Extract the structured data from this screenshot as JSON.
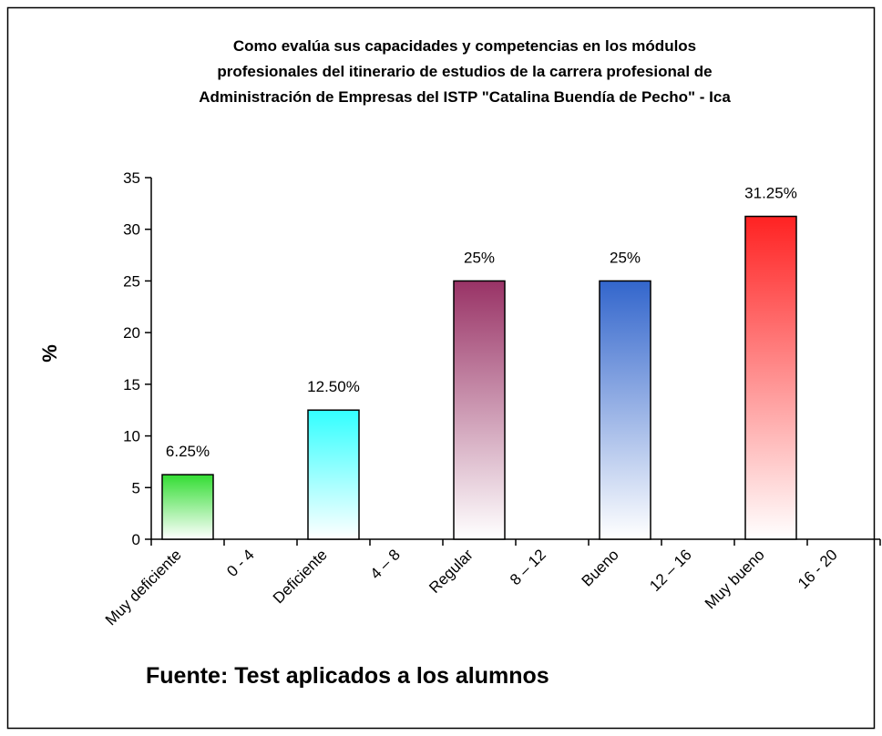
{
  "chart_data": {
    "type": "bar",
    "title": [
      "Como evalúa sus capacidades y competencias en los módulos",
      "profesionales del itinerario de estudios de la carrera profesional de",
      "Administración de Empresas del ISTP \"Catalina Buendía de Pecho\" - Ica"
    ],
    "ylabel": "%",
    "source": "Fuente: Test aplicados a los alumnos",
    "categories": [
      "Muy deficiente",
      "0 - 4",
      "Deficiente",
      "4 – 8",
      "Regular",
      "8 – 12",
      "Bueno",
      "12 – 16",
      "Muy bueno",
      "16 - 20"
    ],
    "values": [
      6.25,
      null,
      12.5,
      null,
      25,
      null,
      25,
      null,
      31.25,
      null
    ],
    "value_labels": [
      "6.25%",
      null,
      "12.50%",
      null,
      "25%",
      null,
      "25%",
      null,
      "31.25%",
      null
    ],
    "colors": [
      "#33dd33",
      null,
      "#33ffff",
      null,
      "#993366",
      null,
      "#3366cc",
      null,
      "#ff2222",
      null
    ],
    "ylim": [
      0,
      35
    ],
    "yticks": [
      0,
      5,
      10,
      15,
      20,
      25,
      30,
      35
    ],
    "grid": false
  }
}
